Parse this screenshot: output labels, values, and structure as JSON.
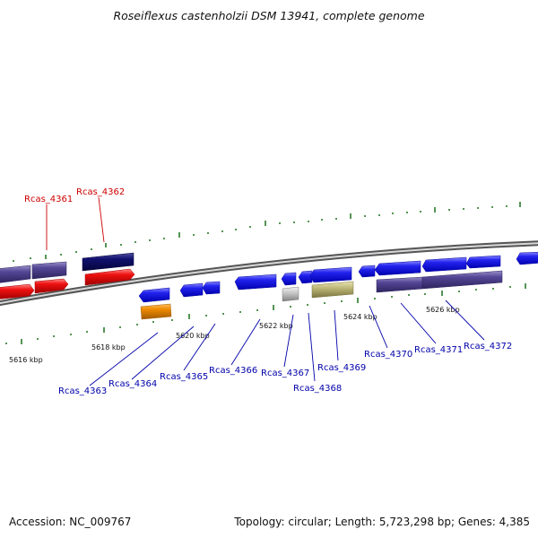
{
  "title": "Roseiflexus castenholzii DSM 13941, complete genome",
  "footer": {
    "accession": "Accession: NC_009767",
    "summary": "Topology: circular; Length: 5,723,298 bp; Genes: 4,385"
  },
  "colors": {
    "backbone": "#909090",
    "tick": "#2a7a2a",
    "forward_label": "#cc0000",
    "reverse_label": "#0000aa",
    "blue_gene": "#1a1aee",
    "purple_gene": "#4c3f8c",
    "navy_gene": "#0d0d6e",
    "red_gene": "#ee1111",
    "orange_gene": "#ee8a00",
    "grey_gene": "#c0c0c0",
    "olive_gene": "#b5b070"
  },
  "scale_labels": [
    "5616 kbp",
    "5618 kbp",
    "5620 kbp",
    "5622 kbp",
    "5624 kbp",
    "5626 kbp"
  ],
  "gene_labels": {
    "rcas_4361": "Rcas_4361",
    "rcas_4362": "Rcas_4362",
    "rcas_4363": "Rcas_4363",
    "rcas_4364": "Rcas_4364",
    "rcas_4365": "Rcas_4365",
    "rcas_4366": "Rcas_4366",
    "rcas_4367": "Rcas_4367",
    "rcas_4368": "Rcas_4368",
    "rcas_4369": "Rcas_4369",
    "rcas_4370": "Rcas_4370",
    "rcas_4371": "Rcas_4371",
    "rcas_4372": "Rcas_4372"
  }
}
